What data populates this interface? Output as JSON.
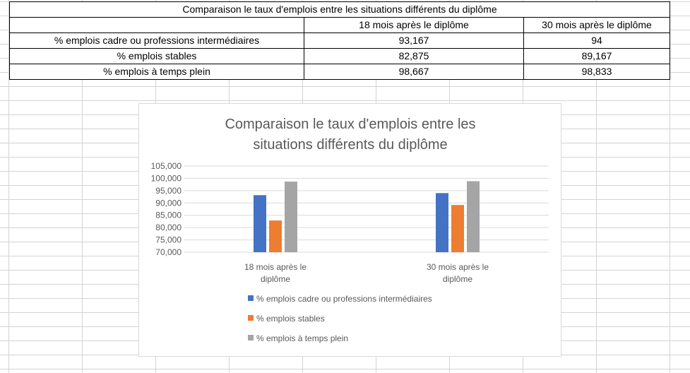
{
  "table": {
    "title": "Comparaison le taux d'emplois entre les situations différents du diplôme",
    "headers": [
      "",
      "18 mois après le diplôme",
      "30 mois après le diplôme"
    ],
    "rows": [
      [
        "% emplois cadre ou professions intermédiaires",
        "93,167",
        "94"
      ],
      [
        "% emplois stables",
        "82,875",
        "89,167"
      ],
      [
        "% emplois à temps plein",
        "98,667",
        "98,833"
      ]
    ]
  },
  "chart_data": {
    "type": "bar",
    "title_lines": [
      "Comparaison le taux d'emplois entre les",
      "situations différents du diplôme"
    ],
    "categories": [
      "18 mois après le diplôme",
      "30 mois après le diplôme"
    ],
    "category_label_lines": [
      [
        "18 mois après le",
        "diplôme"
      ],
      [
        "30 mois après le",
        "diplôme"
      ]
    ],
    "series": [
      {
        "name": "% emplois cadre ou professions intermédiaires",
        "values": [
          93.167,
          94
        ],
        "color": "#4472c4"
      },
      {
        "name": "% emplois stables",
        "values": [
          82.875,
          89.167
        ],
        "color": "#ed7d31"
      },
      {
        "name": "% emplois à temps plein",
        "values": [
          98.667,
          98.833
        ],
        "color": "#a5a5a5"
      }
    ],
    "ylim": [
      70,
      105
    ],
    "y_ticks": [
      {
        "value": 70,
        "label": "70,000"
      },
      {
        "value": 75,
        "label": "75,000"
      },
      {
        "value": 80,
        "label": "80,000"
      },
      {
        "value": 85,
        "label": "85,000"
      },
      {
        "value": 90,
        "label": "90,000"
      },
      {
        "value": 95,
        "label": "95,000"
      },
      {
        "value": 100,
        "label": "100,000"
      },
      {
        "value": 105,
        "label": "105,000"
      }
    ],
    "grid": true,
    "legend_position": "bottom"
  },
  "colors": {
    "gridline": "#d9d9d9",
    "axis_text": "#595959",
    "title_text": "#595959"
  }
}
